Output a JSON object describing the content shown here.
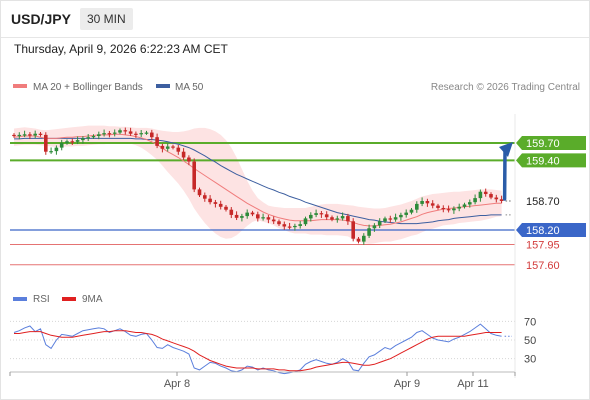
{
  "header": {
    "symbol": "USD/JPY",
    "timeframe": "30 MIN",
    "datetime": "Thursday, April 9, 2026 6:22:23 AM CET"
  },
  "legend": {
    "ma20_label": "MA 20 + Bollinger Bands",
    "ma50_label": "MA 50",
    "credit": "Research © 2026 Trading Central",
    "rsi_label": "RSI",
    "rsi_ma_label": "9MA"
  },
  "colors": {
    "ma20": "#f07c7c",
    "ma50": "#3d5fa0",
    "band_fill": "#fde3e3",
    "green_level": "#5aac2a",
    "blue_level": "#3a66c8",
    "red_level": "#e57373",
    "candle_up": "#2e8b3a",
    "candle_down": "#c62828",
    "arrow": "#2a5ca8",
    "rsi": "#5b7fdc",
    "rsi_ma": "#e02020"
  },
  "chart_data": [
    {
      "type": "candlestick",
      "ylim": [
        157.2,
        160.2
      ],
      "levels": [
        {
          "value": "159.70",
          "kind": "resistance",
          "color": "green"
        },
        {
          "value": "159.40",
          "kind": "resistance",
          "color": "green"
        },
        {
          "value": "158.70",
          "kind": "current",
          "color": "dark"
        },
        {
          "value": "158.20",
          "kind": "support",
          "color": "blue"
        },
        {
          "value": "157.95",
          "kind": "support",
          "color": "red"
        },
        {
          "value": "157.60",
          "kind": "support",
          "color": "red"
        }
      ],
      "forecast_arrow": {
        "from": 158.7,
        "to": 159.7
      },
      "x_labels": [
        "Apr 8",
        "Apr 9",
        "Apr 11"
      ],
      "closes": [
        159.82,
        159.84,
        159.85,
        159.83,
        159.86,
        159.84,
        159.55,
        159.56,
        159.62,
        159.7,
        159.73,
        159.72,
        159.75,
        159.78,
        159.8,
        159.82,
        159.85,
        159.87,
        159.86,
        159.88,
        159.92,
        159.9,
        159.86,
        159.85,
        159.87,
        159.88,
        159.8,
        159.65,
        159.6,
        159.64,
        159.62,
        159.55,
        159.45,
        159.38,
        158.9,
        158.8,
        158.74,
        158.68,
        158.65,
        158.6,
        158.55,
        158.46,
        158.41,
        158.44,
        158.5,
        158.47,
        158.4,
        158.42,
        158.38,
        158.35,
        158.3,
        158.26,
        158.25,
        158.27,
        158.3,
        158.4,
        158.46,
        158.49,
        158.47,
        158.42,
        158.38,
        158.4,
        158.44,
        158.35,
        158.05,
        158.0,
        158.1,
        158.23,
        158.28,
        158.35,
        158.4,
        158.38,
        158.42,
        158.46,
        158.5,
        158.55,
        158.65,
        158.7,
        158.66,
        158.62,
        158.58,
        158.56,
        158.54,
        158.57,
        158.6,
        158.64,
        158.68,
        158.75,
        158.86,
        158.82,
        158.76,
        158.73,
        158.7
      ],
      "ma20": [
        159.8,
        159.81,
        159.82,
        159.82,
        159.82,
        159.8,
        159.78,
        159.78,
        159.78,
        159.79,
        159.8,
        159.8,
        159.81,
        159.81,
        159.82,
        159.83,
        159.84,
        159.84,
        159.84,
        159.85,
        159.85,
        159.84,
        159.83,
        159.81,
        159.79,
        159.76,
        159.72,
        159.67,
        159.61,
        159.55,
        159.5,
        159.45,
        159.39,
        159.33,
        159.26,
        159.2,
        159.14,
        159.08,
        159.02,
        158.96,
        158.9,
        158.84,
        158.78,
        158.72,
        158.66,
        158.61,
        158.56,
        158.51,
        158.47,
        158.44,
        158.41,
        158.39,
        158.37,
        158.36,
        158.36,
        158.36,
        158.36,
        158.37,
        158.38,
        158.38,
        158.38,
        158.38,
        158.37,
        158.36,
        158.33,
        158.3,
        158.28,
        158.27,
        158.27,
        158.28,
        158.29,
        158.3,
        158.32,
        158.34,
        158.37,
        158.4,
        158.43,
        158.47,
        158.5,
        158.52,
        158.54,
        158.56,
        158.57,
        158.58,
        158.59,
        158.6,
        158.61,
        158.62,
        158.63,
        158.64,
        158.65,
        158.66,
        158.66
      ],
      "ma50": [
        159.77,
        159.77,
        159.78,
        159.78,
        159.78,
        159.78,
        159.78,
        159.78,
        159.78,
        159.78,
        159.78,
        159.78,
        159.78,
        159.78,
        159.78,
        159.78,
        159.78,
        159.78,
        159.78,
        159.78,
        159.78,
        159.78,
        159.78,
        159.77,
        159.77,
        159.76,
        159.76,
        159.75,
        159.74,
        159.72,
        159.7,
        159.68,
        159.65,
        159.62,
        159.58,
        159.53,
        159.48,
        159.42,
        159.37,
        159.31,
        159.26,
        159.21,
        159.16,
        159.12,
        159.08,
        159.04,
        159.0,
        158.96,
        158.92,
        158.89,
        158.85,
        158.82,
        158.78,
        158.75,
        158.72,
        158.68,
        158.65,
        158.62,
        158.59,
        158.56,
        158.53,
        158.5,
        158.48,
        158.46,
        158.44,
        158.42,
        158.4,
        158.38,
        158.37,
        158.35,
        158.34,
        158.33,
        158.32,
        158.31,
        158.31,
        158.31,
        158.31,
        158.32,
        158.33,
        158.34,
        158.36,
        158.37,
        158.38,
        158.4,
        158.41,
        158.42,
        158.43,
        158.44,
        158.45,
        158.45,
        158.46,
        158.46,
        158.46
      ],
      "band_upper": [
        159.95,
        159.96,
        159.97,
        159.96,
        159.95,
        159.93,
        159.92,
        159.93,
        159.94,
        159.95,
        159.96,
        159.97,
        159.98,
        159.99,
        160.0,
        160.0,
        160.0,
        160.0,
        159.99,
        159.99,
        159.98,
        159.98,
        159.97,
        159.96,
        159.96,
        159.96,
        159.95,
        159.93,
        159.91,
        159.9,
        159.89,
        159.89,
        159.9,
        159.92,
        159.95,
        159.96,
        159.96,
        159.94,
        159.9,
        159.84,
        159.75,
        159.62,
        159.45,
        159.25,
        159.05,
        158.88,
        158.75,
        158.68,
        158.62,
        158.6,
        158.59,
        158.58,
        158.58,
        158.58,
        158.58,
        158.58,
        158.6,
        158.62,
        158.64,
        158.65,
        158.65,
        158.65,
        158.64,
        158.63,
        158.62,
        158.6,
        158.59,
        158.58,
        158.57,
        158.57,
        158.58,
        158.6,
        158.62,
        158.64,
        158.67,
        158.7,
        158.74,
        158.78,
        158.8,
        158.82,
        158.83,
        158.84,
        158.85,
        158.86,
        158.86,
        158.87,
        158.88,
        158.89,
        158.9,
        158.9,
        158.9,
        158.89,
        158.88
      ],
      "band_lower": [
        159.65,
        159.66,
        159.67,
        159.67,
        159.67,
        159.66,
        159.65,
        159.64,
        159.63,
        159.63,
        159.64,
        159.64,
        159.65,
        159.65,
        159.66,
        159.67,
        159.68,
        159.68,
        159.69,
        159.7,
        159.71,
        159.7,
        159.69,
        159.66,
        159.62,
        159.56,
        159.49,
        159.41,
        159.31,
        159.2,
        159.1,
        159.0,
        158.88,
        158.74,
        158.57,
        158.44,
        158.32,
        158.22,
        158.14,
        158.08,
        158.05,
        158.06,
        158.11,
        158.19,
        158.27,
        158.34,
        158.37,
        158.34,
        158.32,
        158.28,
        158.23,
        158.2,
        158.16,
        158.14,
        158.14,
        158.14,
        158.12,
        158.12,
        158.12,
        158.11,
        158.11,
        158.11,
        158.1,
        158.09,
        158.04,
        158.0,
        157.97,
        157.96,
        157.97,
        157.99,
        158.0,
        158.0,
        158.02,
        158.04,
        158.07,
        158.1,
        158.12,
        158.16,
        158.2,
        158.22,
        158.25,
        158.28,
        158.29,
        158.3,
        158.32,
        158.33,
        158.34,
        158.35,
        158.36,
        158.38,
        158.4,
        158.43,
        158.44
      ]
    },
    {
      "type": "line",
      "ylim": [
        20,
        80
      ],
      "y_ticks": [
        "70",
        "50",
        "30"
      ],
      "rsi": [
        58,
        60,
        63,
        65,
        59,
        62,
        45,
        41,
        50,
        56,
        55,
        54,
        57,
        60,
        61,
        62,
        63,
        62,
        58,
        60,
        62,
        59,
        55,
        54,
        56,
        57,
        50,
        42,
        41,
        45,
        42,
        40,
        38,
        35,
        20,
        18,
        22,
        26,
        25,
        22,
        20,
        17,
        16,
        18,
        22,
        21,
        18,
        20,
        18,
        17,
        15,
        14,
        15,
        16,
        18,
        24,
        27,
        29,
        27,
        25,
        24,
        26,
        30,
        27,
        18,
        17,
        25,
        32,
        34,
        38,
        42,
        40,
        44,
        47,
        50,
        53,
        58,
        60,
        56,
        52,
        50,
        49,
        48,
        51,
        53,
        56,
        59,
        63,
        67,
        62,
        57,
        55,
        54
      ],
      "rsi_ma": [
        57,
        57,
        58,
        59,
        59,
        59,
        57,
        55,
        54,
        53,
        53,
        53,
        54,
        55,
        56,
        57,
        58,
        59,
        59,
        60,
        60,
        60,
        59,
        58,
        58,
        57,
        56,
        54,
        51,
        49,
        47,
        45,
        43,
        41,
        38,
        34,
        31,
        28,
        26,
        24,
        22,
        21,
        20,
        20,
        20,
        20,
        19,
        19,
        19,
        19,
        18,
        18,
        17,
        17,
        17,
        18,
        19,
        21,
        22,
        23,
        24,
        25,
        26,
        26,
        25,
        24,
        23,
        23,
        24,
        26,
        28,
        30,
        33,
        36,
        39,
        42,
        45,
        48,
        51,
        53,
        54,
        54,
        54,
        54,
        54,
        54,
        55,
        56,
        57,
        58,
        58,
        58,
        58
      ]
    }
  ]
}
